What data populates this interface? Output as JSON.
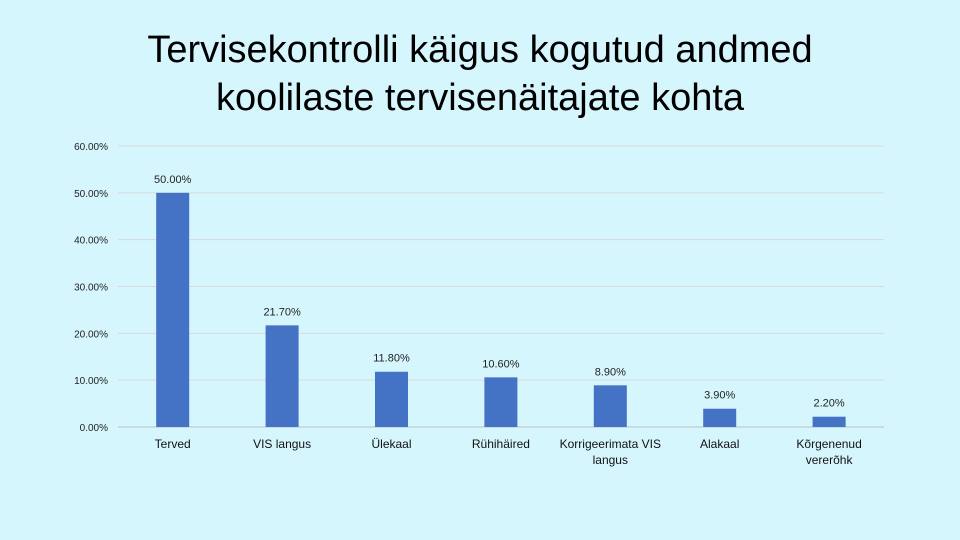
{
  "slide": {
    "title_line1": "Tervisekontrolli käigus kogutud andmed",
    "title_line2": "koolilaste tervisenäitajate kohta"
  },
  "colors": {
    "background": "#d6f6fd",
    "bar": "#4472c4",
    "grid": "#d9d9d9"
  },
  "chart_data": {
    "type": "bar",
    "title": "",
    "xlabel": "",
    "ylabel": "",
    "categories": [
      [
        "Terved"
      ],
      [
        "VIS langus"
      ],
      [
        "Ülekaal"
      ],
      [
        "Rühihäired"
      ],
      [
        "Korrigeerimata VIS",
        "langus"
      ],
      [
        "Alakaal"
      ],
      [
        "Kõrgenenud",
        "vererõhk"
      ]
    ],
    "values": [
      50.0,
      21.7,
      11.8,
      10.6,
      8.9,
      3.9,
      2.2
    ],
    "data_labels": [
      "50.00%",
      "21.70%",
      "11.80%",
      "10.60%",
      "8.90%",
      "3.90%",
      "2.20%"
    ],
    "ylim": [
      0,
      60
    ],
    "y_ticks": [
      0,
      10,
      20,
      30,
      40,
      50,
      60
    ],
    "y_tick_labels": [
      "0.00%",
      "10.00%",
      "20.00%",
      "30.00%",
      "40.00%",
      "50.00%",
      "60.00%"
    ],
    "grid": true,
    "legend": "none"
  }
}
